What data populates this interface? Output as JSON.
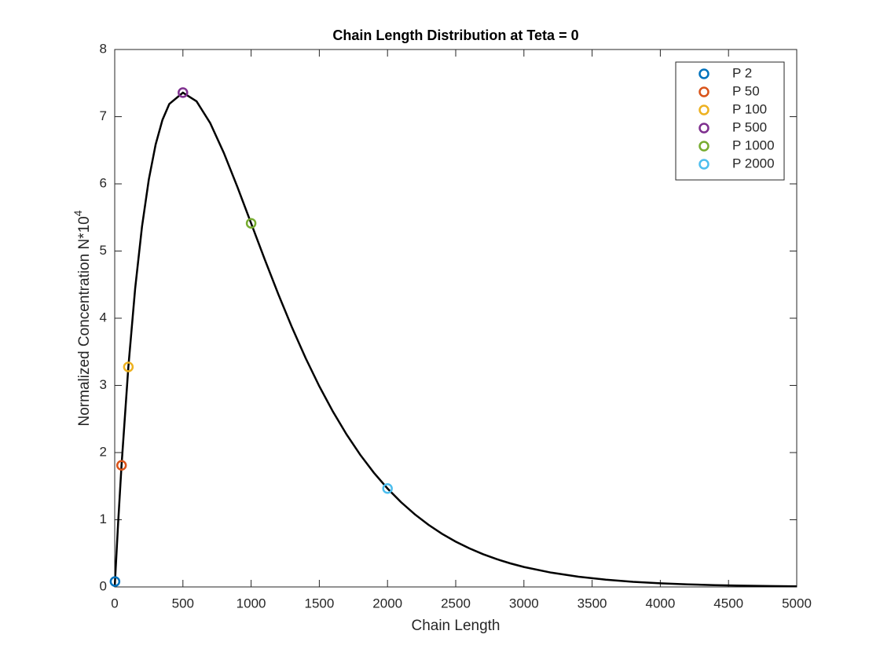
{
  "chart_data": {
    "type": "scatter",
    "title": "Chain Length Distribution at Teta = 0",
    "xlabel": "Chain Length",
    "ylabel": "Normalized Concentration N*10",
    "ylabel_superscript": "4",
    "xlim": [
      0,
      5000
    ],
    "xticks": [
      0,
      500,
      1000,
      1500,
      2000,
      2500,
      3000,
      3500,
      4000,
      4500,
      5000
    ],
    "ylim": [
      0,
      8
    ],
    "yticks": [
      0,
      1,
      2,
      3,
      4,
      5,
      6,
      7,
      8
    ],
    "grid": false,
    "legend_location": "northeast",
    "curve": {
      "color": "#000000",
      "x": [
        0,
        2,
        25,
        50,
        100,
        150,
        200,
        250,
        300,
        350,
        400,
        500,
        600,
        700,
        800,
        900,
        1000,
        1100,
        1200,
        1300,
        1400,
        1500,
        1600,
        1700,
        1800,
        1900,
        2000,
        2100,
        2200,
        2300,
        2400,
        2500,
        2600,
        2700,
        2800,
        2900,
        3000,
        3200,
        3400,
        3600,
        3800,
        4000,
        4200,
        4400,
        4600,
        4800,
        5000
      ],
      "y": [
        0,
        0.08,
        0.951,
        1.81,
        3.275,
        4.445,
        5.363,
        6.065,
        6.586,
        6.952,
        7.189,
        7.358,
        7.229,
        6.905,
        6.461,
        5.951,
        5.413,
        4.875,
        4.354,
        3.862,
        3.405,
        2.987,
        2.609,
        2.269,
        1.967,
        1.7,
        1.465,
        1.26,
        1.081,
        0.925,
        0.79,
        0.674,
        0.574,
        0.488,
        0.414,
        0.351,
        0.297,
        0.213,
        0.152,
        0.108,
        0.076,
        0.054,
        0.038,
        0.027,
        0.019,
        0.013,
        0.009
      ]
    },
    "series": [
      {
        "name": "P 2",
        "color": "#0072BD",
        "x": [
          2
        ],
        "values": [
          0.08
        ]
      },
      {
        "name": "P 50",
        "color": "#D95319",
        "x": [
          50
        ],
        "values": [
          1.81
        ]
      },
      {
        "name": "P 100",
        "color": "#EDB120",
        "x": [
          100
        ],
        "values": [
          3.275
        ]
      },
      {
        "name": "P 500",
        "color": "#7E2F8E",
        "x": [
          500
        ],
        "values": [
          7.358
        ]
      },
      {
        "name": "P 1000",
        "color": "#77AC30",
        "x": [
          1000
        ],
        "values": [
          5.413
        ]
      },
      {
        "name": "P 2000",
        "color": "#4DBEEE",
        "x": [
          2000
        ],
        "values": [
          1.465
        ]
      }
    ]
  }
}
